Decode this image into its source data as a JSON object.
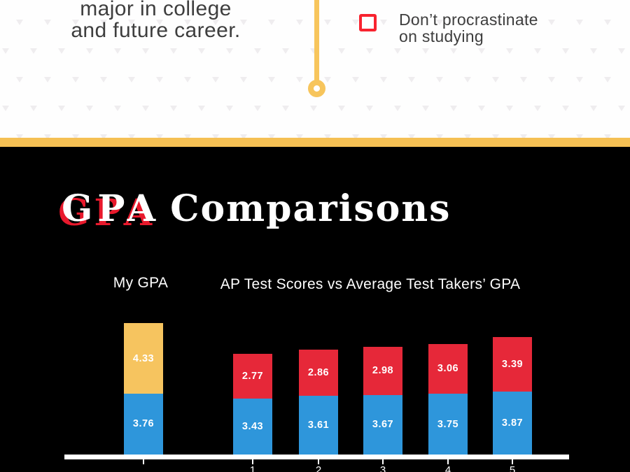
{
  "top_section": {
    "intro_line1": "major in college",
    "intro_line2": "and future career.",
    "checklist": {
      "label_line1": "Don’t procrastinate",
      "label_line2": "on studying",
      "checked": false
    }
  },
  "gpa_section": {
    "title_accent": "GPA",
    "title_rest": "Comparisons",
    "my_gpa_label": "My GPA",
    "comparison_label": "AP Test Scores vs Average Test Takers’ GPA"
  },
  "chart_data": {
    "type": "bar",
    "subtype": "stacked",
    "title": "GPA Comparisons",
    "group_labels": [
      "My GPA",
      "AP Test Scores vs Average Test Takers’ GPA"
    ],
    "categories": [
      "My GPA",
      "1",
      "2",
      "3",
      "4",
      "5"
    ],
    "tick_labels": [
      "",
      "1",
      "2",
      "3",
      "4",
      "5"
    ],
    "series": [
      {
        "name": "top-segment",
        "values": [
          4.33,
          2.77,
          2.86,
          2.98,
          3.06,
          3.39
        ],
        "colors": [
          "#f6c45f",
          "#e62839",
          "#e62839",
          "#e62839",
          "#e62839",
          "#e62839"
        ]
      },
      {
        "name": "bottom-segment",
        "values": [
          3.76,
          3.43,
          3.61,
          3.67,
          3.75,
          3.87
        ],
        "colors": [
          "#2e96db",
          "#2e96db",
          "#2e96db",
          "#2e96db",
          "#2e96db",
          "#2e96db"
        ]
      }
    ],
    "value_labels_shown": true,
    "legend": "none",
    "gridlines": false,
    "axis_line_color": "#ffffff"
  },
  "colors": {
    "background_white": "#fefefe",
    "background_black": "#000000",
    "accent_yellow": "#f5c054",
    "bar_yellow": "#f6c45f",
    "bar_blue": "#2e96db",
    "bar_red": "#e62839",
    "checkbox_red": "#f8232f",
    "title_shadow_red": "#e8192c",
    "text_dark": "#3e3e3e",
    "pattern_gray": "#efedef"
  }
}
